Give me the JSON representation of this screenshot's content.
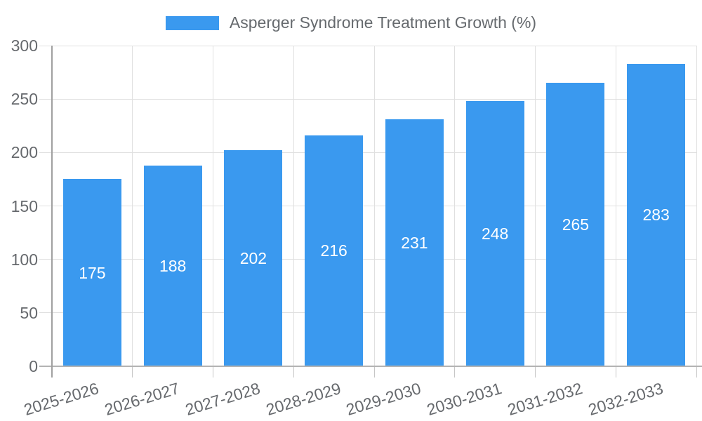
{
  "chart_data": {
    "type": "bar",
    "title": "",
    "series_name": "Asperger Syndrome Treatment Growth (%)",
    "categories": [
      "2025-2026",
      "2026-2027",
      "2027-2028",
      "2028-2029",
      "2029-2030",
      "2030-2031",
      "2031-2032",
      "2032-2033"
    ],
    "values": [
      175,
      188,
      202,
      216,
      231,
      248,
      265,
      283
    ],
    "xlabel": "",
    "ylabel": "",
    "ylim": [
      0,
      300
    ],
    "yticks": [
      0,
      50,
      100,
      150,
      200,
      250,
      300
    ],
    "grid": true,
    "legend_position": "top-center",
    "bar_color": "#3a99ef",
    "value_labels_position": "inside-center",
    "value_label_color": "#ffffff",
    "axis_text_color": "#66696d"
  }
}
